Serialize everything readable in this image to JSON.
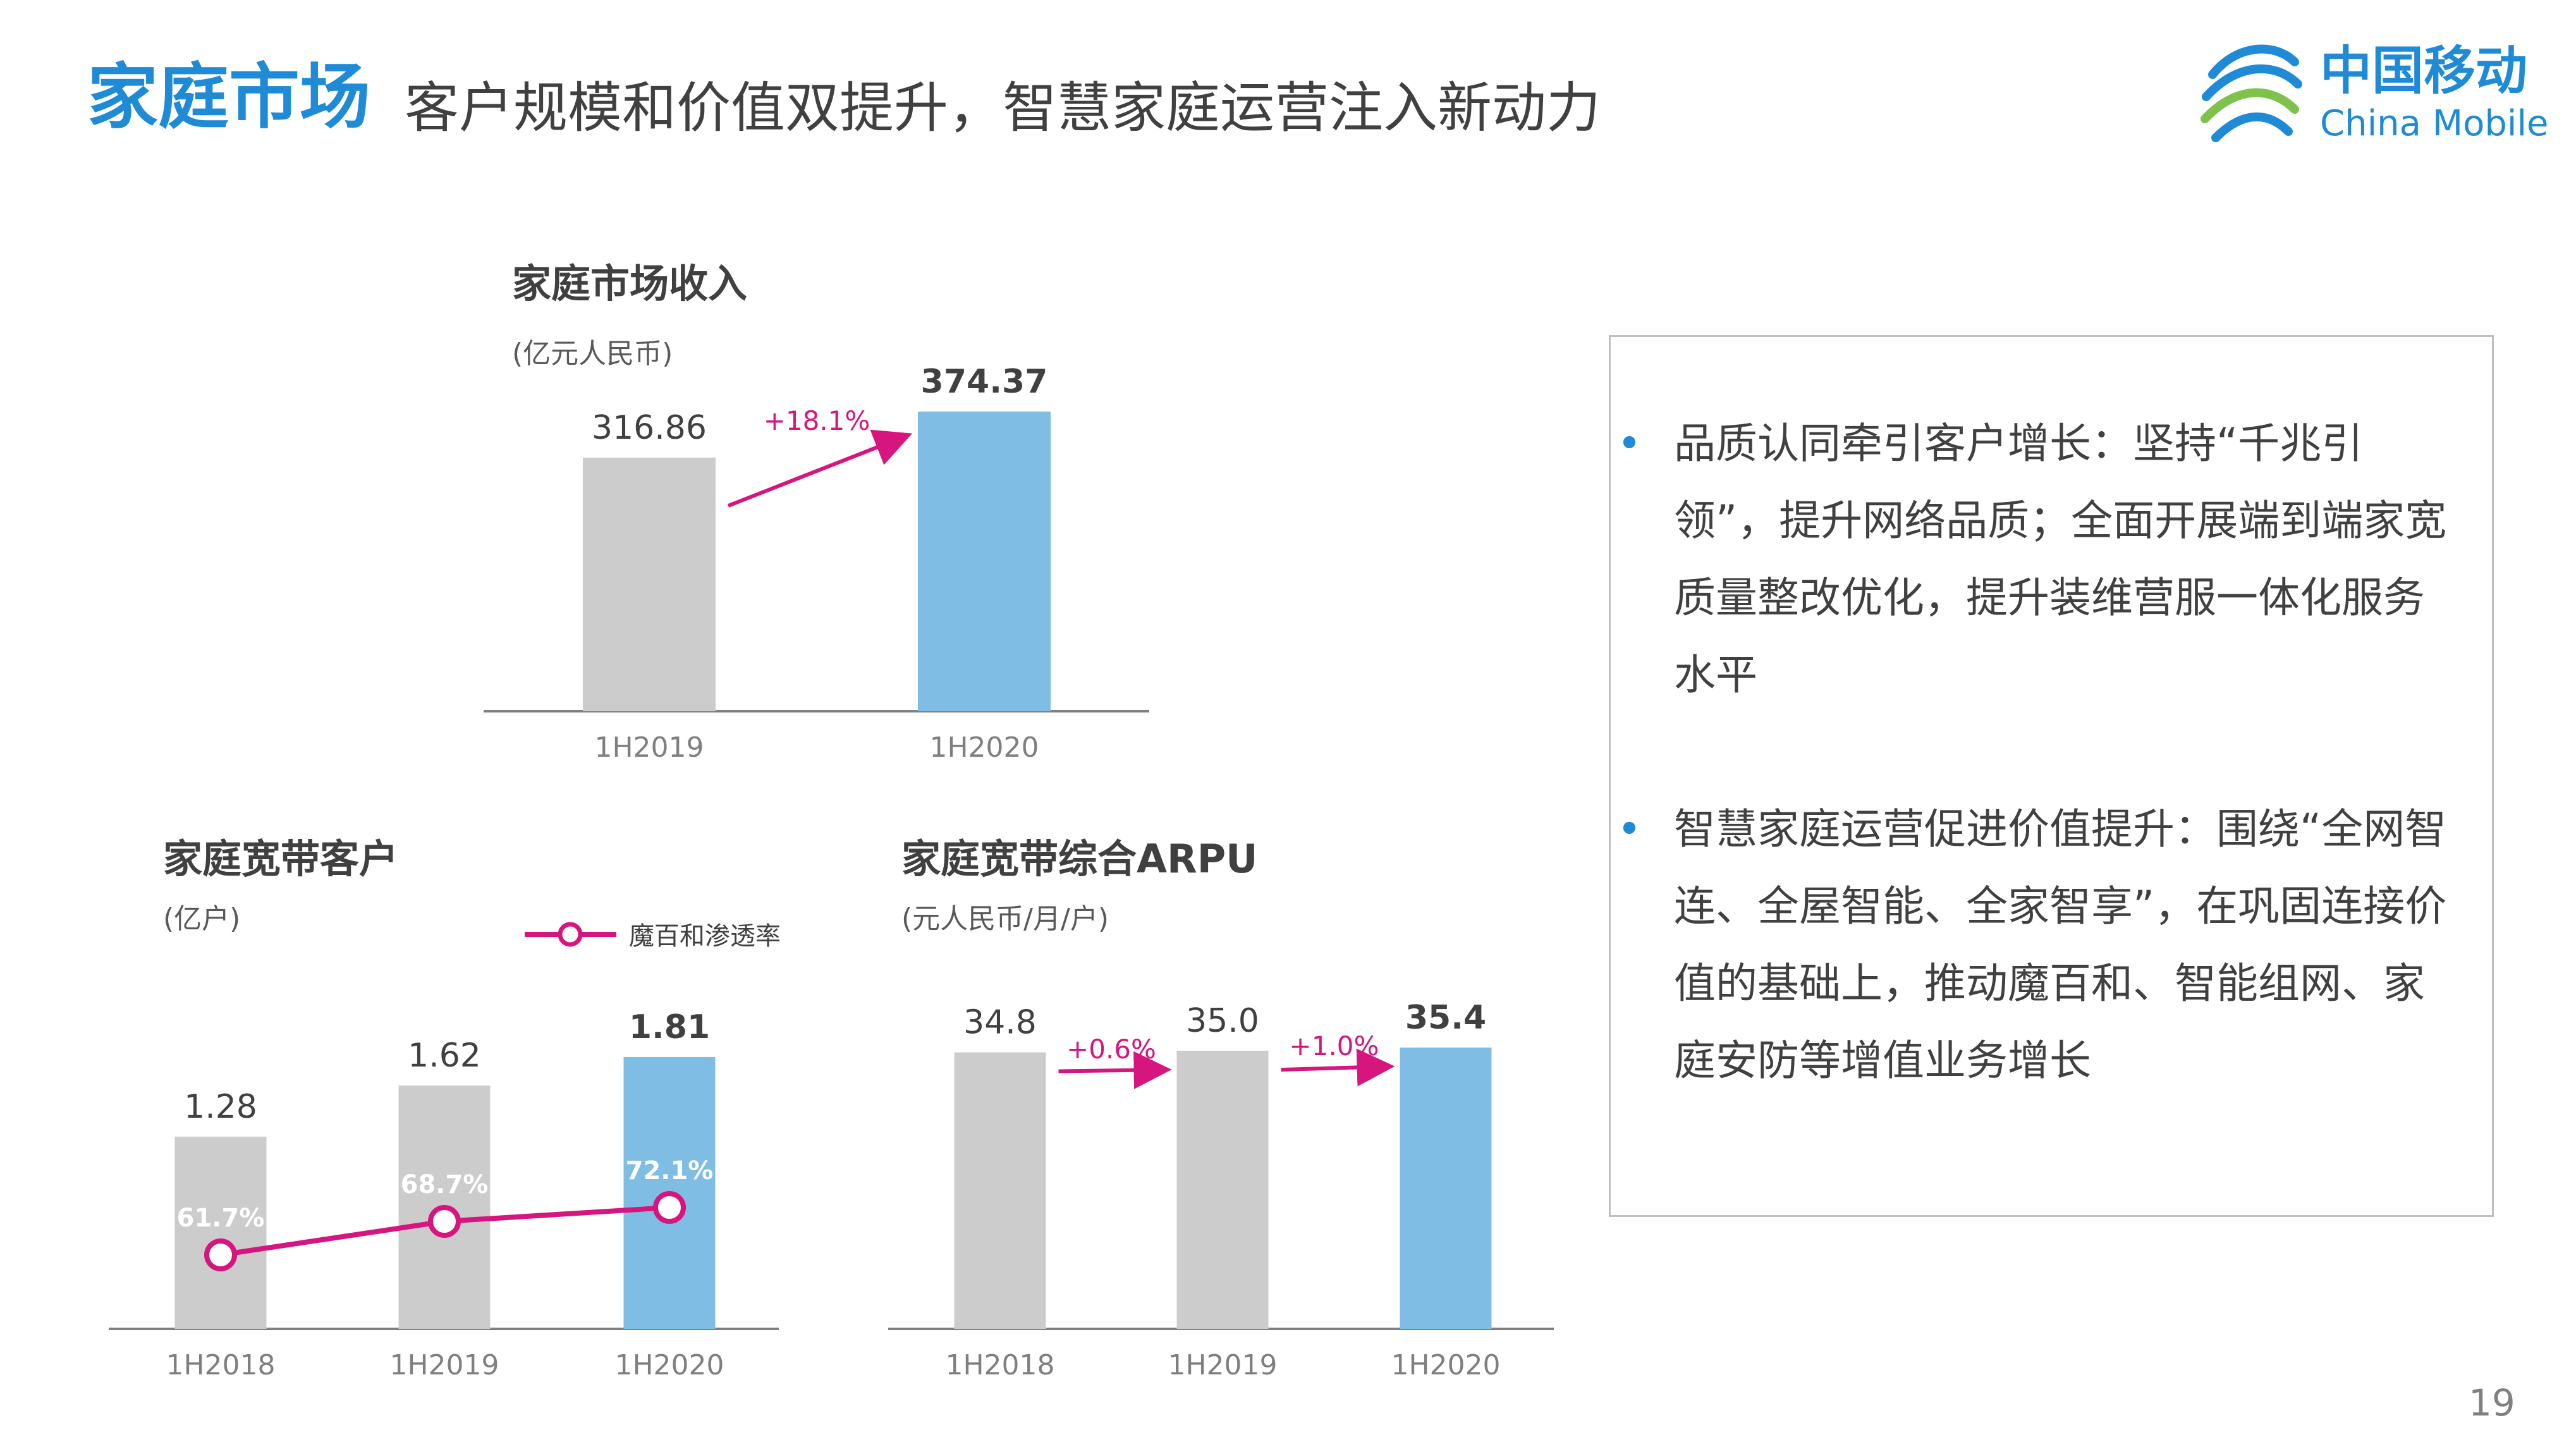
{
  "header": {
    "title": "家庭市场",
    "subtitle": "客户规模和价值双提升，智慧家庭运营注入新动力"
  },
  "logo": {
    "cn": "中国移动",
    "en": "China Mobile"
  },
  "colors": {
    "gray": "#cccccc",
    "blue": "#7fbde4",
    "magenta": "#d6157e",
    "accent": "#1f8bd6"
  },
  "chart_data": [
    {
      "type": "bar",
      "title": "家庭市场收入",
      "unit": "(亿元人民币)",
      "categories": [
        "1H2019",
        "1H2020"
      ],
      "values": [
        316.86,
        374.37
      ],
      "value_labels": [
        "316.86",
        "374.37"
      ],
      "growth": [
        "+18.1%"
      ]
    },
    {
      "type": "bar",
      "title": "家庭宽带客户",
      "unit": "(亿户)",
      "categories": [
        "1H2018",
        "1H2019",
        "1H2020"
      ],
      "values": [
        1.28,
        1.62,
        1.81
      ],
      "value_labels": [
        "1.28",
        "1.62",
        "1.81"
      ],
      "series": [
        {
          "name": "魔百和渗透率",
          "values": [
            61.7,
            68.7,
            72.1
          ],
          "labels": [
            "61.7%",
            "68.7%",
            "72.1%"
          ]
        }
      ],
      "legend": "top"
    },
    {
      "type": "bar",
      "title": "家庭宽带综合ARPU",
      "unit": "(元人民币/月/户)",
      "categories": [
        "1H2018",
        "1H2019",
        "1H2020"
      ],
      "values": [
        34.8,
        35.0,
        35.4
      ],
      "value_labels": [
        "34.8",
        "35.0",
        "35.4"
      ],
      "growth": [
        "+0.6%",
        "+1.0%"
      ]
    }
  ],
  "bullets": [
    {
      "text": "品质认同牵引客户增长：坚持“千兆引领”，提升网络品质；全面开展端到端家宽质量整改优化，提升装维营服一体化服务水平"
    },
    {
      "text": "智慧家庭运营促进价值提升：围绕“全网智连、全屋智能、全家智享”，在巩固连接价值的基础上，推动魔百和、智能组网、家庭安防等增值业务增长"
    }
  ],
  "bullet_symbol": "•",
  "page_number": "19"
}
